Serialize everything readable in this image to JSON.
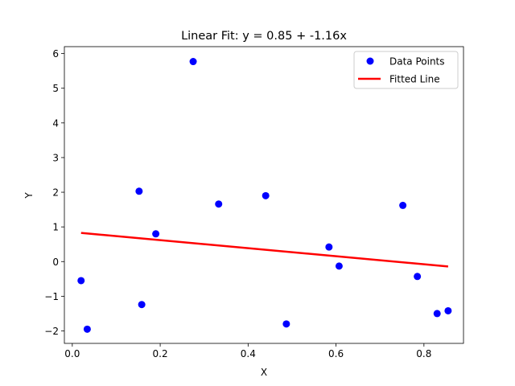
{
  "chart_data": {
    "type": "scatter",
    "title": "Linear Fit: y = 0.85 + -1.16x",
    "xlabel": "X",
    "ylabel": "Y",
    "xlim": [
      -0.018,
      0.89
    ],
    "ylim": [
      -2.36,
      6.2
    ],
    "xticks": [
      0.0,
      0.2,
      0.4,
      0.6,
      0.8
    ],
    "xtick_labels": [
      "0.0",
      "0.2",
      "0.4",
      "0.6",
      "0.8"
    ],
    "yticks": [
      -2,
      -1,
      0,
      1,
      2,
      3,
      4,
      5,
      6
    ],
    "ytick_labels": [
      "−2",
      "−1",
      "0",
      "1",
      "2",
      "3",
      "4",
      "5",
      "6"
    ],
    "grid": false,
    "legend_position": "top-right",
    "series": [
      {
        "name": "Data Points",
        "kind": "scatter",
        "color": "#0000ff",
        "x": [
          0.02,
          0.034,
          0.152,
          0.158,
          0.19,
          0.275,
          0.333,
          0.44,
          0.487,
          0.584,
          0.607,
          0.752,
          0.785,
          0.83,
          0.855
        ],
        "y": [
          -0.55,
          -1.95,
          2.03,
          -1.24,
          0.8,
          5.77,
          1.66,
          1.9,
          -1.8,
          0.42,
          -0.13,
          1.62,
          -0.43,
          -1.5,
          -1.42
        ]
      },
      {
        "name": "Fitted Line",
        "kind": "line",
        "color": "#ff0000",
        "x": [
          0.02,
          0.855
        ],
        "y": [
          0.827,
          -0.142
        ]
      }
    ]
  }
}
